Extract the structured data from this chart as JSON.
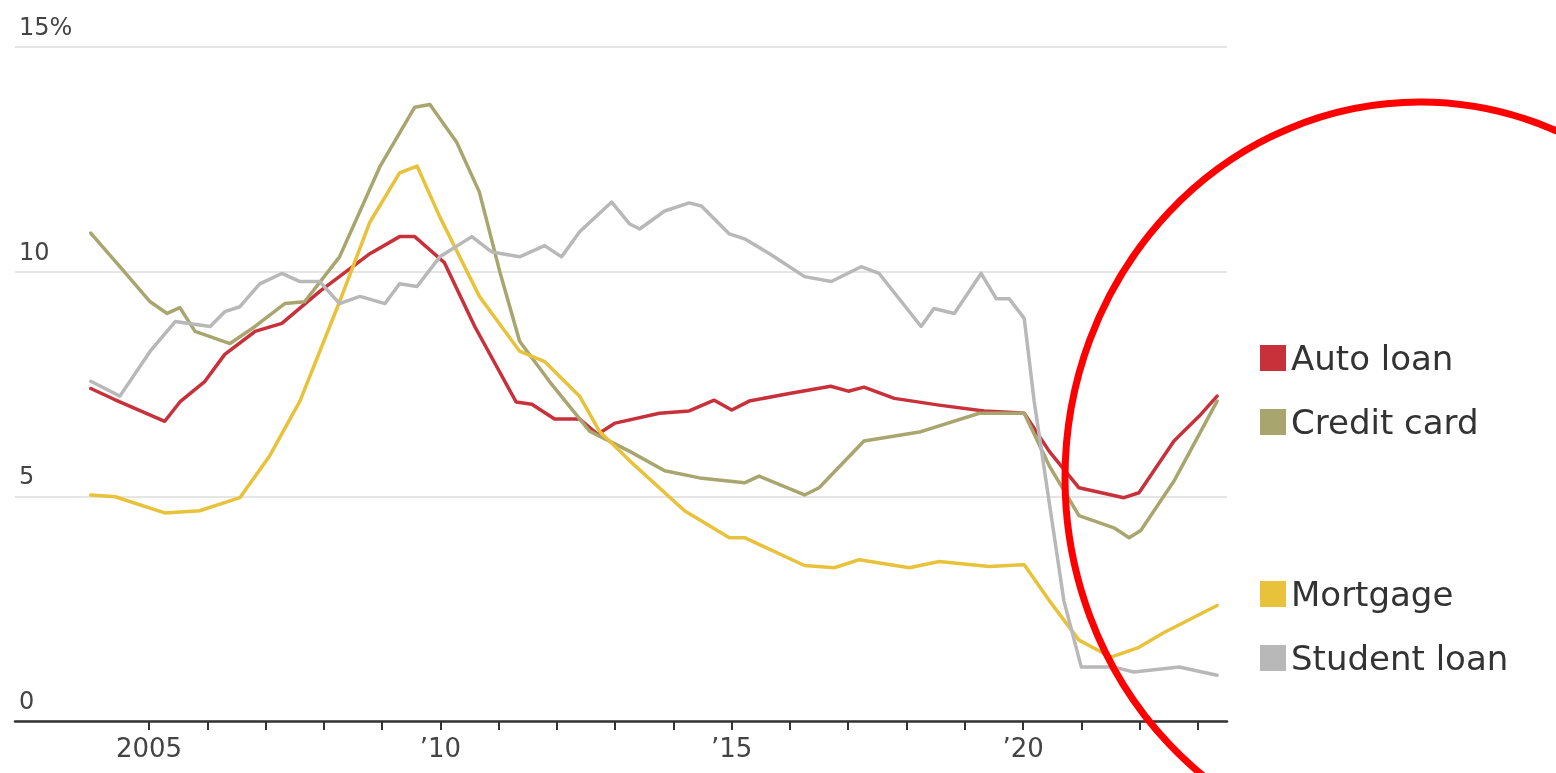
{
  "chart_data": {
    "type": "line",
    "xlim": [
      2002.7,
      2023.5
    ],
    "ylim": [
      0,
      15
    ],
    "xticks": [
      {
        "value": 2005,
        "label": "2005"
      },
      {
        "value": 2006,
        "label": null
      },
      {
        "value": 2007,
        "label": null
      },
      {
        "value": 2008,
        "label": null
      },
      {
        "value": 2009,
        "label": null
      },
      {
        "value": 2010,
        "label": "’10"
      },
      {
        "value": 2011,
        "label": null
      },
      {
        "value": 2012,
        "label": null
      },
      {
        "value": 2013,
        "label": null
      },
      {
        "value": 2014,
        "label": null
      },
      {
        "value": 2015,
        "label": "’15"
      },
      {
        "value": 2016,
        "label": null
      },
      {
        "value": 2017,
        "label": null
      },
      {
        "value": 2018,
        "label": null
      },
      {
        "value": 2019,
        "label": null
      },
      {
        "value": 2020,
        "label": "’20"
      },
      {
        "value": 2021,
        "label": null
      },
      {
        "value": 2022,
        "label": null
      },
      {
        "value": 2023,
        "label": null
      }
    ],
    "yticks": [
      0,
      5,
      10,
      {
        "value": 15,
        "label": "15%"
      }
    ],
    "grid": "y",
    "legend": "right",
    "marker": "none",
    "line_style": "solid",
    "series": [
      {
        "name": "Auto loan",
        "color": "#c8303a",
        "x": [
          2004.0,
          2004.4,
          2005.27,
          2005.53,
          2005.96,
          2006.3,
          2006.82,
          2007.28,
          2007.93,
          2008.79,
          2009.3,
          2009.56,
          2010.07,
          2010.59,
          2011.3,
          2011.57,
          2011.96,
          2012.39,
          2012.7,
          2013.0,
          2013.76,
          2014.27,
          2014.7,
          2015.0,
          2015.3,
          2015.99,
          2016.7,
          2017.0,
          2017.27,
          2017.79,
          2018.56,
          2019.33,
          2020.02,
          2020.45,
          2020.96,
          2021.73,
          2021.99,
          2022.59,
          2023.02,
          2023.33
        ],
        "values": [
          7.4,
          7.16,
          6.67,
          7.1,
          7.56,
          8.16,
          8.67,
          8.85,
          9.56,
          10.4,
          10.78,
          10.78,
          10.2,
          8.78,
          7.1,
          7.05,
          6.72,
          6.72,
          6.38,
          6.63,
          6.85,
          6.9,
          7.14,
          6.92,
          7.12,
          7.29,
          7.45,
          7.34,
          7.43,
          7.18,
          7.03,
          6.9,
          6.85,
          6.0,
          5.19,
          4.97,
          5.08,
          6.23,
          6.78,
          7.23
        ]
      },
      {
        "name": "Credit card",
        "color": "#a9a56e",
        "x": [
          2004.0,
          2004.5,
          2005.02,
          2005.31,
          2005.53,
          2005.79,
          2006.39,
          2006.82,
          2007.33,
          2007.67,
          2008.27,
          2008.96,
          2009.56,
          2009.82,
          2010.28,
          2010.67,
          2011.02,
          2011.36,
          2011.87,
          2012.56,
          2012.73,
          2013.25,
          2013.85,
          2014.45,
          2015.22,
          2015.47,
          2016.25,
          2016.5,
          2017.27,
          2018.22,
          2019.25,
          2020.02,
          2020.45,
          2020.96,
          2021.56,
          2021.82,
          2022.02,
          2022.59,
          2023.33
        ],
        "values": [
          10.86,
          10.11,
          9.33,
          9.07,
          9.2,
          8.67,
          8.4,
          8.78,
          9.29,
          9.33,
          10.33,
          12.33,
          13.66,
          13.72,
          12.88,
          11.77,
          10.0,
          8.45,
          7.56,
          6.45,
          6.34,
          6.0,
          5.57,
          5.41,
          5.3,
          5.45,
          5.03,
          5.19,
          6.23,
          6.43,
          6.85,
          6.85,
          5.68,
          4.57,
          4.3,
          4.08,
          4.24,
          5.34,
          7.12
        ]
      },
      {
        "name": "Mortgage",
        "color": "#e8c23a",
        "x": [
          2004.0,
          2004.42,
          2005.27,
          2005.87,
          2006.56,
          2007.07,
          2007.59,
          2008.27,
          2008.79,
          2009.3,
          2009.6,
          2009.99,
          2010.67,
          2011.36,
          2011.79,
          2012.39,
          2012.73,
          2013.25,
          2014.19,
          2014.96,
          2015.22,
          2016.25,
          2016.76,
          2017.19,
          2018.05,
          2018.56,
          2019.42,
          2020.02,
          2020.45,
          2020.96,
          2021.51,
          2021.99,
          2022.42,
          2023.33
        ],
        "values": [
          5.03,
          4.99,
          4.63,
          4.68,
          4.97,
          5.9,
          7.12,
          9.33,
          11.1,
          12.2,
          12.35,
          11.22,
          9.45,
          8.23,
          8.0,
          7.23,
          6.45,
          5.79,
          4.68,
          4.08,
          4.08,
          3.46,
          3.41,
          3.59,
          3.41,
          3.55,
          3.44,
          3.48,
          2.68,
          1.8,
          1.42,
          1.64,
          1.97,
          2.57
        ]
      },
      {
        "name": "Student loan",
        "color": "#b8b8b8",
        "x": [
          2004.0,
          2004.5,
          2005.02,
          2005.45,
          2006.05,
          2006.3,
          2006.56,
          2006.9,
          2007.28,
          2007.59,
          2007.93,
          2008.27,
          2008.62,
          2009.05,
          2009.3,
          2009.6,
          2009.99,
          2010.54,
          2010.88,
          2011.36,
          2011.79,
          2012.08,
          2012.39,
          2012.94,
          2013.25,
          2013.42,
          2013.85,
          2014.27,
          2014.48,
          2014.96,
          2015.22,
          2015.65,
          2016.25,
          2016.71,
          2017.22,
          2017.53,
          2018.25,
          2018.47,
          2018.82,
          2019.28,
          2019.54,
          2019.76,
          2020.02,
          2020.19,
          2020.7,
          2021.0,
          2021.56,
          2021.9,
          2022.68,
          2023.33
        ],
        "values": [
          7.56,
          7.23,
          8.23,
          8.89,
          8.78,
          9.11,
          9.22,
          9.73,
          9.96,
          9.78,
          9.78,
          9.29,
          9.45,
          9.29,
          9.73,
          9.67,
          10.33,
          10.78,
          10.44,
          10.33,
          10.58,
          10.33,
          10.89,
          11.55,
          11.06,
          10.95,
          11.35,
          11.53,
          11.46,
          10.84,
          10.73,
          10.4,
          9.89,
          9.78,
          10.11,
          9.96,
          8.78,
          9.18,
          9.07,
          9.96,
          9.4,
          9.4,
          8.96,
          7.12,
          2.68,
          1.2,
          1.2,
          1.09,
          1.2,
          1.02
        ]
      }
    ]
  }
}
